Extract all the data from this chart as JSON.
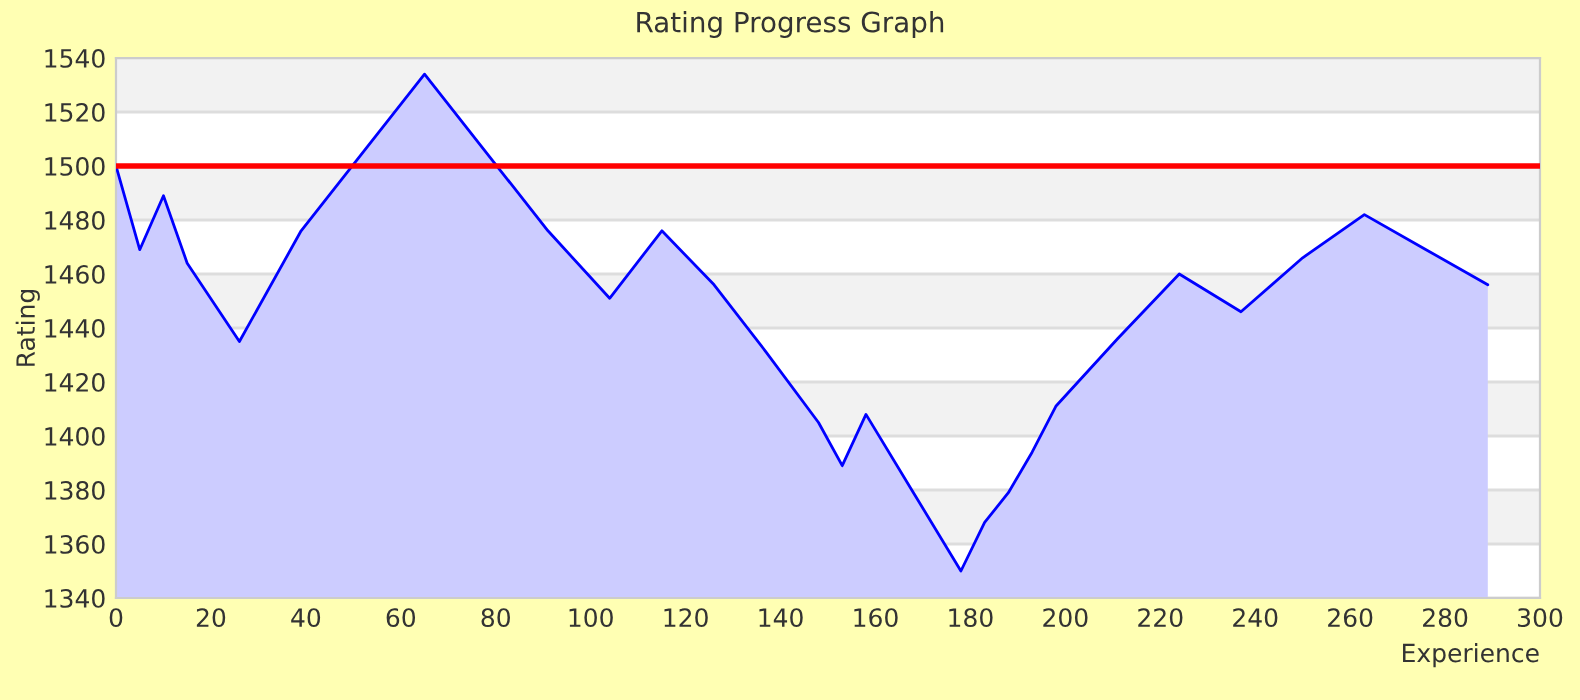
{
  "chart_data": {
    "type": "area",
    "title": "Rating Progress Graph",
    "xlabel": "Experience",
    "ylabel": "Rating",
    "x": [
      0,
      5,
      10,
      15,
      26,
      39,
      65,
      91,
      104,
      115,
      126,
      137,
      148,
      153,
      158,
      168,
      178,
      183,
      188,
      193,
      198,
      211,
      224,
      237,
      250,
      263,
      276,
      289
    ],
    "series": [
      {
        "color": "#0000ff",
        "values": [
          1500,
          1469,
          1489,
          1464,
          1435,
          1476,
          1534,
          1476,
          1451,
          1476,
          1456,
          1431,
          1405,
          1389,
          1408,
          1379,
          1350,
          1368,
          1379,
          1394,
          1411,
          1436,
          1460,
          1446,
          1466,
          1482,
          1469,
          1456
        ]
      }
    ],
    "xlim": [
      0,
      300
    ],
    "xticks": [
      0,
      20,
      40,
      60,
      80,
      100,
      120,
      140,
      160,
      180,
      200,
      220,
      240,
      260,
      280,
      300
    ],
    "ylim": [
      1340,
      1540
    ],
    "yticks": [
      1340,
      1360,
      1380,
      1400,
      1420,
      1440,
      1460,
      1480,
      1500,
      1520,
      1540
    ],
    "grid": "y",
    "legend": false,
    "ref_lines": [
      {
        "axis": "y",
        "value": 1500,
        "color": "#ff0000"
      }
    ]
  }
}
